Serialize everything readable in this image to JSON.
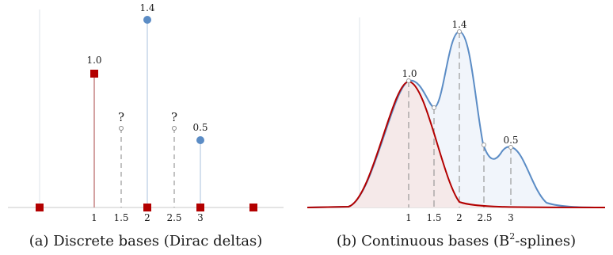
{
  "panels": {
    "a": {
      "caption": "(a) Discrete bases (Dirac deltas)",
      "ticks": [
        {
          "x": 1,
          "label": "1"
        },
        {
          "x": 1.5,
          "label": "1.5"
        },
        {
          "x": 2,
          "label": "2"
        },
        {
          "x": 2.5,
          "label": "2.5"
        },
        {
          "x": 3,
          "label": "3"
        }
      ],
      "known_values": [
        {
          "x": 1,
          "y": 1.0,
          "label": "1.0",
          "color": "#b30000"
        },
        {
          "x": 2,
          "y": 1.4,
          "label": "1.4",
          "color": "#5b8cc5"
        },
        {
          "x": 3,
          "y": 0.5,
          "label": "0.5",
          "color": "#5b8cc5"
        }
      ],
      "unknown_values": [
        {
          "x": 1.5,
          "label": "?"
        },
        {
          "x": 2.5,
          "label": "?"
        }
      ]
    },
    "b": {
      "caption_main": "(b) Continuous bases (B",
      "caption_sup": "2",
      "caption_tail": "-splines)",
      "ticks": [
        {
          "x": 1,
          "label": "1"
        },
        {
          "x": 1.5,
          "label": "1.5"
        },
        {
          "x": 2,
          "label": "2"
        },
        {
          "x": 2.5,
          "label": "2.5"
        },
        {
          "x": 3,
          "label": "3"
        }
      ],
      "peak_labels": [
        {
          "x": 1,
          "label": "1.0"
        },
        {
          "x": 2,
          "label": "1.4"
        },
        {
          "x": 3,
          "label": "0.5"
        }
      ]
    }
  },
  "colors": {
    "red": "#b30000",
    "blue": "#5b8cc5",
    "axis": "#cccccc",
    "grid": "#dfe6ee",
    "dash": "#999999"
  }
}
